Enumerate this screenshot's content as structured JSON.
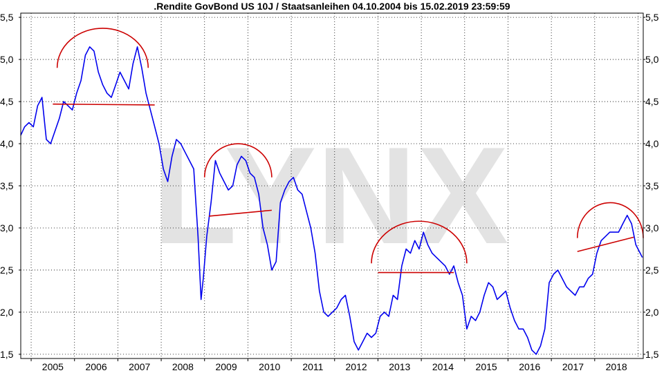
{
  "chart_data": {
    "type": "line",
    "title": ".Rendite GovBond US 10J / Staatsanleihen 04.10.2004 bis 15.02.2019 23:59:59",
    "watermark": "LYNX",
    "xlabel": "",
    "ylabel": "",
    "x_tick_labels": [
      "2005",
      "2006",
      "2007",
      "2008",
      "2009",
      "2010",
      "2011",
      "2012",
      "2013",
      "2014",
      "2015",
      "2016",
      "2017",
      "2018"
    ],
    "xlim": [
      2004.76,
      2019.12
    ],
    "ylim": [
      1.45,
      5.55
    ],
    "y_ticks": [
      1.5,
      2.0,
      2.5,
      3.0,
      3.5,
      4.0,
      4.5,
      5.0,
      5.5
    ],
    "y_tick_labels": [
      "1,5",
      "2,0",
      "2,5",
      "3,0",
      "3,5",
      "4,0",
      "4,5",
      "5,0",
      "5,5"
    ],
    "y_axis_sides": "left and right",
    "grid": "dotted",
    "line_color": "#0000ee",
    "annotation_color": "#cc0000",
    "series": [
      {
        "x": [
          2004.76,
          2004.85,
          2004.95,
          2005.05,
          2005.15,
          2005.25,
          2005.35,
          2005.45,
          2005.55,
          2005.65,
          2005.75,
          2005.85,
          2005.95,
          2006.05,
          2006.15,
          2006.25,
          2006.35,
          2006.45,
          2006.55,
          2006.65,
          2006.75,
          2006.85,
          2006.95,
          2007.05,
          2007.15,
          2007.25,
          2007.35,
          2007.45,
          2007.55,
          2007.65,
          2007.75,
          2007.85,
          2007.95,
          2008.05,
          2008.15,
          2008.25,
          2008.35,
          2008.45,
          2008.55,
          2008.65,
          2008.75,
          2008.85,
          2008.92,
          2008.97,
          2009.05,
          2009.15,
          2009.25,
          2009.35,
          2009.45,
          2009.55,
          2009.65,
          2009.75,
          2009.85,
          2009.95,
          2010.05,
          2010.15,
          2010.25,
          2010.35,
          2010.45,
          2010.55,
          2010.65,
          2010.75,
          2010.85,
          2010.95,
          2011.05,
          2011.15,
          2011.25,
          2011.35,
          2011.45,
          2011.55,
          2011.65,
          2011.75,
          2011.85,
          2011.95,
          2012.05,
          2012.15,
          2012.25,
          2012.35,
          2012.45,
          2012.55,
          2012.65,
          2012.75,
          2012.85,
          2012.95,
          2013.05,
          2013.15,
          2013.25,
          2013.35,
          2013.45,
          2013.55,
          2013.65,
          2013.75,
          2013.85,
          2013.95,
          2014.05,
          2014.15,
          2014.25,
          2014.35,
          2014.45,
          2014.55,
          2014.65,
          2014.75,
          2014.85,
          2014.95,
          2015.05,
          2015.15,
          2015.25,
          2015.35,
          2015.45,
          2015.55,
          2015.65,
          2015.75,
          2015.85,
          2015.95,
          2016.05,
          2016.15,
          2016.25,
          2016.35,
          2016.45,
          2016.55,
          2016.65,
          2016.75,
          2016.85,
          2016.95,
          2017.05,
          2017.15,
          2017.25,
          2017.35,
          2017.45,
          2017.55,
          2017.65,
          2017.75,
          2017.85,
          2017.95,
          2018.05,
          2018.15,
          2018.25,
          2018.35,
          2018.45,
          2018.55,
          2018.65,
          2018.75,
          2018.85,
          2018.95,
          2019.05,
          2019.1
        ],
        "y": [
          4.1,
          4.2,
          4.25,
          4.2,
          4.45,
          4.55,
          4.05,
          4.0,
          4.15,
          4.3,
          4.5,
          4.45,
          4.4,
          4.6,
          4.75,
          5.05,
          5.15,
          5.1,
          4.85,
          4.7,
          4.6,
          4.55,
          4.7,
          4.85,
          4.75,
          4.65,
          4.95,
          5.15,
          4.9,
          4.6,
          4.4,
          4.2,
          4.0,
          3.7,
          3.55,
          3.85,
          4.05,
          4.0,
          3.9,
          3.8,
          3.7,
          2.9,
          2.15,
          2.4,
          2.9,
          3.3,
          3.8,
          3.65,
          3.55,
          3.45,
          3.5,
          3.75,
          3.85,
          3.8,
          3.65,
          3.6,
          3.4,
          3.0,
          2.8,
          2.5,
          2.6,
          3.3,
          3.45,
          3.55,
          3.6,
          3.45,
          3.4,
          3.2,
          3.0,
          2.7,
          2.25,
          2.0,
          1.95,
          2.0,
          2.05,
          2.15,
          2.2,
          1.95,
          1.65,
          1.55,
          1.65,
          1.75,
          1.7,
          1.75,
          1.95,
          2.0,
          1.95,
          2.2,
          2.15,
          2.55,
          2.75,
          2.7,
          2.85,
          2.75,
          2.95,
          2.8,
          2.7,
          2.65,
          2.6,
          2.55,
          2.45,
          2.55,
          2.35,
          2.2,
          1.8,
          1.95,
          1.9,
          2.0,
          2.2,
          2.35,
          2.3,
          2.15,
          2.2,
          2.25,
          2.05,
          1.9,
          1.8,
          1.8,
          1.7,
          1.55,
          1.5,
          1.6,
          1.8,
          2.35,
          2.45,
          2.5,
          2.4,
          2.3,
          2.25,
          2.2,
          2.3,
          2.3,
          2.4,
          2.45,
          2.7,
          2.85,
          2.9,
          2.95,
          2.95,
          2.95,
          3.05,
          3.15,
          3.05,
          2.8,
          2.7,
          2.65
        ]
      }
    ],
    "annotations": {
      "arcs": [
        {
          "x_start": 2005.6,
          "x_end": 2007.7,
          "y_base": 4.9,
          "y_peak": 5.37
        },
        {
          "x_start": 2009.0,
          "x_end": 2010.55,
          "y_base": 3.6,
          "y_peak": 4.0
        },
        {
          "x_start": 2012.85,
          "x_end": 2015.05,
          "y_base": 2.58,
          "y_peak": 3.08
        },
        {
          "x_start": 2017.6,
          "x_end": 2019.12,
          "y_base": 2.88,
          "y_peak": 3.3
        }
      ],
      "lines": [
        {
          "x1": 2005.5,
          "y1": 4.47,
          "x2": 2007.85,
          "y2": 4.46
        },
        {
          "x1": 2009.1,
          "y1": 3.14,
          "x2": 2010.55,
          "y2": 3.21
        },
        {
          "x1": 2013.0,
          "y1": 2.47,
          "x2": 2014.75,
          "y2": 2.47
        },
        {
          "x1": 2017.6,
          "y1": 2.72,
          "x2": 2018.9,
          "y2": 2.89
        }
      ]
    }
  }
}
